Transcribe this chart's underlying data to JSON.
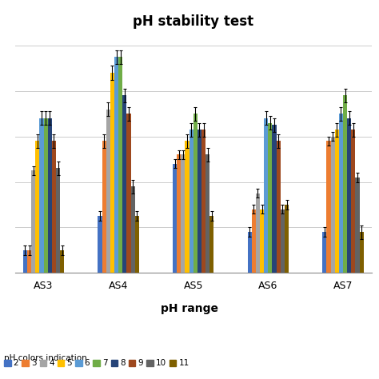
{
  "title": "pH stability test",
  "xlabel": "pH range",
  "legend_label": "pH colors indication",
  "groups": [
    "AS3",
    "AS4",
    "AS5",
    "AS6",
    "AS7"
  ],
  "ph_labels": [
    "2",
    "3",
    "4",
    "5",
    "6",
    "7",
    "8",
    "9",
    "10",
    "11"
  ],
  "colors": [
    "#4472c4",
    "#ed7d31",
    "#a5a5a5",
    "#ffc000",
    "#5b9bd5",
    "#70ad47",
    "#264478",
    "#9e481e",
    "#636363",
    "#7f6000"
  ],
  "values": {
    "AS3": [
      10,
      10,
      45,
      58,
      68,
      68,
      68,
      58,
      46,
      10
    ],
    "AS4": [
      25,
      58,
      72,
      88,
      95,
      95,
      78,
      70,
      38,
      25
    ],
    "AS5": [
      48,
      52,
      52,
      58,
      63,
      70,
      63,
      63,
      52,
      25
    ],
    "AS6": [
      18,
      28,
      35,
      28,
      68,
      66,
      65,
      58,
      28,
      30
    ],
    "AS7": [
      18,
      58,
      60,
      63,
      70,
      78,
      68,
      63,
      42,
      18
    ]
  },
  "errors": {
    "AS3": [
      2,
      2,
      2,
      3,
      3,
      3,
      3,
      3,
      3,
      2
    ],
    "AS4": [
      2,
      3,
      3,
      3,
      3,
      3,
      3,
      3,
      3,
      2
    ],
    "AS5": [
      2,
      2,
      2,
      3,
      3,
      3,
      3,
      3,
      3,
      2
    ],
    "AS6": [
      2,
      2,
      2,
      2,
      3,
      3,
      3,
      3,
      2,
      2
    ],
    "AS7": [
      2,
      2,
      2,
      3,
      3,
      3,
      3,
      3,
      2,
      3
    ]
  },
  "ylim": [
    0,
    105
  ],
  "background_color": "#ffffff",
  "title_fontsize": 12,
  "tick_fontsize": 8,
  "legend_fontsize": 7.5
}
